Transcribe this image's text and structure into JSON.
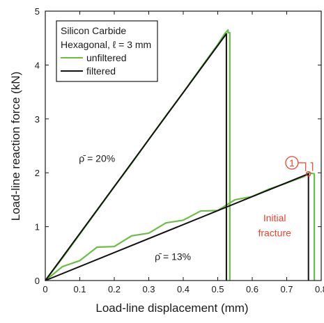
{
  "chart_data": {
    "type": "line",
    "xlabel": "Load-line displacement (mm)",
    "ylabel": "Load-line reaction force (kN)",
    "xlim": [
      0,
      0.8
    ],
    "ylim": [
      0,
      5
    ],
    "xticks": [
      "0",
      "0.1",
      "0.2",
      "0.3",
      "0.4",
      "0.5",
      "0.6",
      "0.7",
      "0.8"
    ],
    "yticks": [
      "0",
      "1",
      "2",
      "3",
      "4",
      "5"
    ],
    "grid": false,
    "legend": {
      "placement": "top-left",
      "title_lines": [
        "Silicon Carbide",
        "Hexagonal, ℓ = 3 mm"
      ],
      "entries": [
        {
          "name": "unfiltered",
          "color": "#6cbd45"
        },
        {
          "name": "filtered",
          "color": "#111111"
        }
      ]
    },
    "series": [
      {
        "name": "unfiltered",
        "color": "#6cbd45",
        "curve": "20",
        "x": [
          0,
          0.05,
          0.1,
          0.15,
          0.2,
          0.25,
          0.3,
          0.35,
          0.4,
          0.45,
          0.5,
          0.52,
          0.53,
          0.53,
          0.535,
          0.535
        ],
        "y": [
          0,
          0.42,
          0.86,
          1.3,
          1.74,
          2.17,
          2.62,
          3.06,
          3.49,
          3.94,
          4.38,
          4.58,
          4.65,
          4.6,
          4.6,
          0
        ]
      },
      {
        "name": "unfiltered",
        "color": "#6cbd45",
        "curve": "13",
        "x": [
          0,
          0.05,
          0.1,
          0.15,
          0.2,
          0.25,
          0.3,
          0.35,
          0.4,
          0.45,
          0.5,
          0.55,
          0.6,
          0.65,
          0.7,
          0.75,
          0.765,
          0.78,
          0.78
        ],
        "y": [
          0,
          0.26,
          0.37,
          0.62,
          0.63,
          0.83,
          0.88,
          1.07,
          1.12,
          1.29,
          1.3,
          1.5,
          1.56,
          1.7,
          1.81,
          1.93,
          2.0,
          1.98,
          0
        ]
      },
      {
        "name": "filtered",
        "color": "#111111",
        "curve": "20",
        "x": [
          0,
          0.525,
          0.525
        ],
        "y": [
          0,
          4.58,
          0
        ]
      },
      {
        "name": "filtered",
        "color": "#111111",
        "curve": "13",
        "x": [
          0,
          0.763,
          0.763
        ],
        "y": [
          0,
          1.98,
          0
        ]
      }
    ],
    "annotations": [
      {
        "text": "ρ̄ = 20%",
        "x": 0.15,
        "y": 2.2
      },
      {
        "text": "ρ̄ = 13%",
        "x": 0.37,
        "y": 0.38
      },
      {
        "text": "Initial",
        "x": 0.665,
        "y": 1.1,
        "color": "#e8452f"
      },
      {
        "text": "fracture",
        "x": 0.665,
        "y": 0.82,
        "color": "#e8452f"
      },
      {
        "text": "1",
        "x": 0.715,
        "y": 2.12,
        "color": "#e8452f",
        "circled": true
      }
    ]
  }
}
